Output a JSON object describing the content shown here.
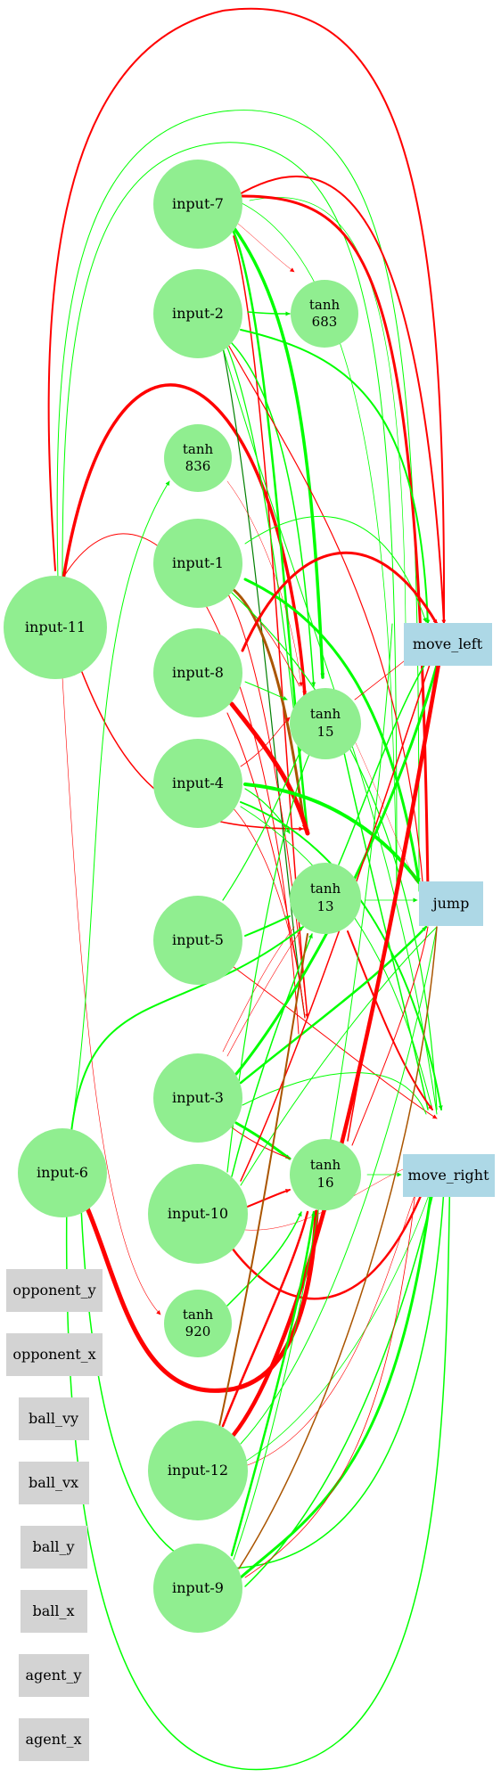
{
  "graph": {
    "title": "Neural network graph",
    "colors": {
      "hidden_node": "#90ee90",
      "output_node": "#add8e6",
      "unused_input_node": "#d3d3d3",
      "positive_edge": "#00ff00",
      "negative_edge": "#ff0000",
      "text": "#000000"
    },
    "nodes": {
      "input_7": "input-7",
      "input_2": "input-2",
      "input_1": "input-1",
      "input_8": "input-8",
      "input_4": "input-4",
      "input_5": "input-5",
      "input_3": "input-3",
      "input_10": "input-10",
      "input_11": "input-11",
      "input_6": "input-6",
      "input_12": "input-12",
      "input_9": "input-9",
      "tanh_683": [
        "tanh",
        "683"
      ],
      "tanh_836": [
        "tanh",
        "836"
      ],
      "tanh_15": [
        "tanh",
        "15"
      ],
      "tanh_13": [
        "tanh",
        "13"
      ],
      "tanh_16": [
        "tanh",
        "16"
      ],
      "tanh_920": [
        "tanh",
        "920"
      ],
      "move_left": "move_left",
      "jump": "jump",
      "move_right": "move_right",
      "opponent_y": "opponent_y",
      "opponent_x": "opponent_x",
      "ball_vy": "ball_vy",
      "ball_vx": "ball_vx",
      "ball_y": "ball_y",
      "ball_x": "ball_x",
      "agent_y": "agent_y",
      "agent_x": "agent_x"
    }
  }
}
